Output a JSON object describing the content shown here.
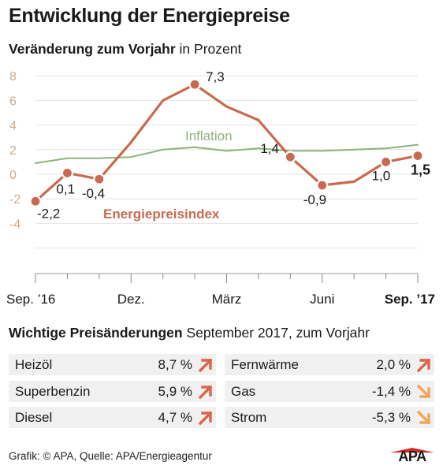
{
  "header": {
    "title": "Entwicklung der Energiepreise",
    "subtitle_bold": "Veränderung zum Vorjahr",
    "subtitle_rest": " in Prozent"
  },
  "colors": {
    "energy": "#c96a50",
    "inflation": "#8fb17a",
    "arrow_up": "#d9664a",
    "arrow_down": "#f2a55a",
    "tick_labels": "#c9a98e"
  },
  "chart_data": {
    "type": "line",
    "ylim": [
      -6,
      9
    ],
    "yticks": [
      8,
      6,
      4,
      2,
      0,
      -2,
      -4
    ],
    "x_ticks": [
      "Sep. ’16",
      "Dez.",
      "März",
      "Juni",
      "Sep. ’17"
    ],
    "x_tick_indices": [
      0,
      3,
      6,
      9,
      12
    ],
    "series": [
      {
        "name": "Energiepreisindex",
        "values": [
          -2.2,
          0.1,
          -0.4,
          2.6,
          6.0,
          7.3,
          5.5,
          4.4,
          1.4,
          -0.9,
          -0.6,
          1.0,
          1.5
        ],
        "markers": [
          0,
          1,
          2,
          5,
          8,
          9,
          11,
          12
        ]
      },
      {
        "name": "Inflation",
        "values": [
          0.9,
          1.3,
          1.3,
          1.4,
          2.0,
          2.2,
          1.9,
          2.1,
          1.9,
          1.9,
          2.0,
          2.1,
          2.4
        ]
      }
    ],
    "data_labels": [
      {
        "series": 0,
        "index": 0,
        "text": "-2,2"
      },
      {
        "series": 0,
        "index": 1,
        "text": "0,1"
      },
      {
        "series": 0,
        "index": 2,
        "text": "-0,4"
      },
      {
        "series": 0,
        "index": 5,
        "text": "7,3"
      },
      {
        "series": 0,
        "index": 8,
        "text": "1,4"
      },
      {
        "series": 0,
        "index": 9,
        "text": "-0,9"
      },
      {
        "series": 0,
        "index": 11,
        "text": "1,0"
      },
      {
        "series": 0,
        "index": 12,
        "text": "1,5"
      }
    ],
    "grid": true
  },
  "price_changes": {
    "title_bold": "Wichtige Preisänderungen",
    "title_rest": " September 2017, zum Vorjahr",
    "left": [
      {
        "name": "Heizöl",
        "value": "8,7 %",
        "direction": "up"
      },
      {
        "name": "Superbenzin",
        "value": "5,9 %",
        "direction": "up"
      },
      {
        "name": "Diesel",
        "value": "4,7 %",
        "direction": "up"
      }
    ],
    "right": [
      {
        "name": "Fernwärme",
        "value": "2,0 %",
        "direction": "up"
      },
      {
        "name": "Gas",
        "value": "-1,4 %",
        "direction": "down"
      },
      {
        "name": "Strom",
        "value": "-5,3 %",
        "direction": "down"
      }
    ]
  },
  "footer": {
    "source": "Grafik: © APA, Quelle: APA/Energieagentur",
    "logo": "APA"
  }
}
